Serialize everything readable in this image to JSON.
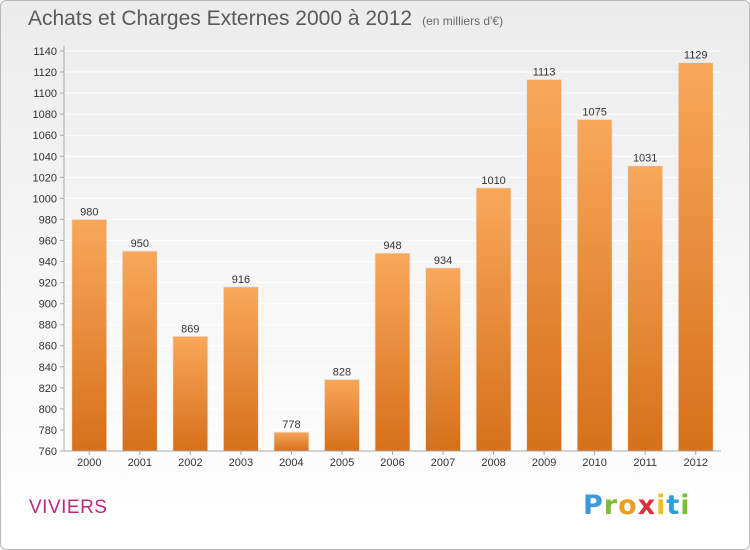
{
  "title": "Achats et Charges Externes 2000 à 2012",
  "subtitle": "(en milliers d'€)",
  "town": "VIVIERS",
  "logo": {
    "letters": [
      "P",
      "r",
      "o",
      "x",
      "i",
      "t",
      "i"
    ],
    "colors": [
      "#3d9ad6",
      "#7dbb3a",
      "#e8a020",
      "#d8323c",
      "#f0c020",
      "#2a9fd8",
      "#7dbb3a"
    ]
  },
  "colors": {
    "bar_top": "#f8a85a",
    "bar_bottom": "#d6701a",
    "grid": "#ffffff",
    "axis": "#aaaaaa"
  },
  "chart_data": {
    "type": "bar",
    "title": "Achats et Charges Externes 2000 à 2012",
    "subtitle": "(en milliers d'€)",
    "categories": [
      "2000",
      "2001",
      "2002",
      "2003",
      "2004",
      "2005",
      "2006",
      "2007",
      "2008",
      "2009",
      "2010",
      "2011",
      "2012"
    ],
    "values": [
      980,
      950,
      869,
      916,
      778,
      828,
      948,
      934,
      1010,
      1113,
      1075,
      1031,
      1129
    ],
    "ylim": [
      760,
      1140
    ],
    "ytick_step": 20,
    "grid": true,
    "legend": "none"
  }
}
